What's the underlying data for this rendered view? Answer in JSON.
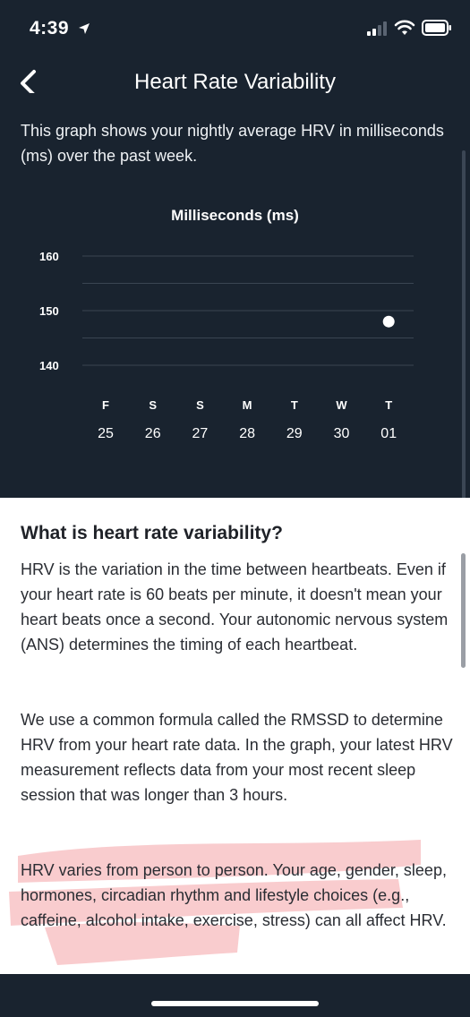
{
  "status_bar": {
    "time": "4:39"
  },
  "header": {
    "title": "Heart Rate Variability"
  },
  "intro_text": "This graph shows your nightly average HRV in milliseconds (ms) over the past week.",
  "chart_data": {
    "type": "scatter",
    "title": "Milliseconds (ms)",
    "ylabel": "Milliseconds (ms)",
    "yticks": [
      160,
      150,
      140
    ],
    "ylim": [
      140,
      160
    ],
    "grid": true,
    "x_day_letters": [
      "F",
      "S",
      "S",
      "M",
      "T",
      "W",
      "T"
    ],
    "x_day_numbers": [
      "25",
      "26",
      "27",
      "28",
      "29",
      "30",
      "01"
    ],
    "values": [
      null,
      null,
      null,
      null,
      null,
      null,
      148
    ],
    "point_color": "#ffffff",
    "grid_color": "#3a4552"
  },
  "content": {
    "heading": "What is heart rate variability?",
    "paragraph_1": "HRV is the variation in the time between heartbeats. Even if your heart rate is 60 beats per minute, it doesn't mean your heart beats once a second. Your autonomic nervous system (ANS) determines the timing of each heartbeat.",
    "paragraph_2": "We use a common formula called the RMSSD to determine HRV from your heart rate data. In the graph, your latest HRV measurement reflects data from your most recent sleep session that was longer than 3 hours.",
    "paragraph_3": "HRV varies from person to person. Your age, gender, sleep, hormones, circadian rhythm and lifestyle choices (e.g., caffeine, alcohol intake, exercise, stress) can all affect HRV.",
    "highlight_color": "#f4a3a6"
  },
  "icons": {
    "back": "chevron-left-icon",
    "location": "location-arrow-icon",
    "signal": "cellular-signal-icon",
    "wifi": "wifi-icon",
    "battery": "battery-icon"
  }
}
